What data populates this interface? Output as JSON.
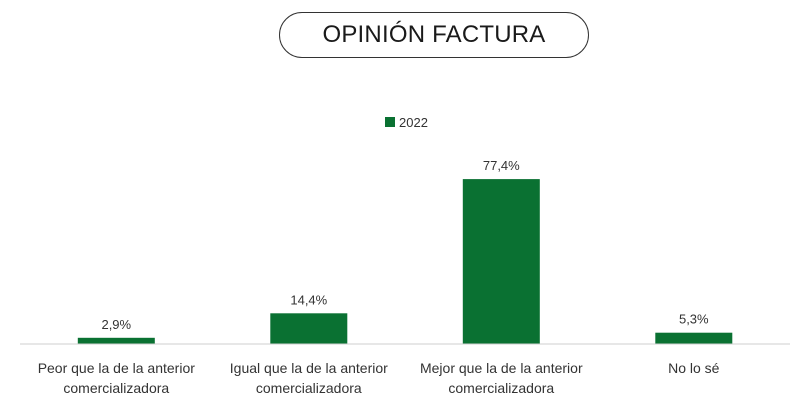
{
  "title": "OPINIÓN FACTURA",
  "colors": {
    "series": "#0a7132",
    "axis": "#cfcfcf"
  },
  "chart_data": {
    "type": "bar",
    "categories": [
      [
        "Peor que la de la anterior",
        "comercializadora"
      ],
      [
        "Igual que la de la anterior",
        "comercializadora"
      ],
      [
        "Mejor que la de la anterior",
        "comercializadora"
      ],
      [
        "No lo sé"
      ]
    ],
    "series": [
      {
        "name": "2022",
        "values": [
          2.9,
          14.4,
          77.4,
          5.3
        ]
      }
    ],
    "data_labels": [
      "2,9%",
      "14,4%",
      "77,4%",
      "5,3%"
    ],
    "ylim": [
      0,
      100
    ],
    "grid": false,
    "legend_position": "top-center",
    "xlabel": "",
    "ylabel": ""
  }
}
